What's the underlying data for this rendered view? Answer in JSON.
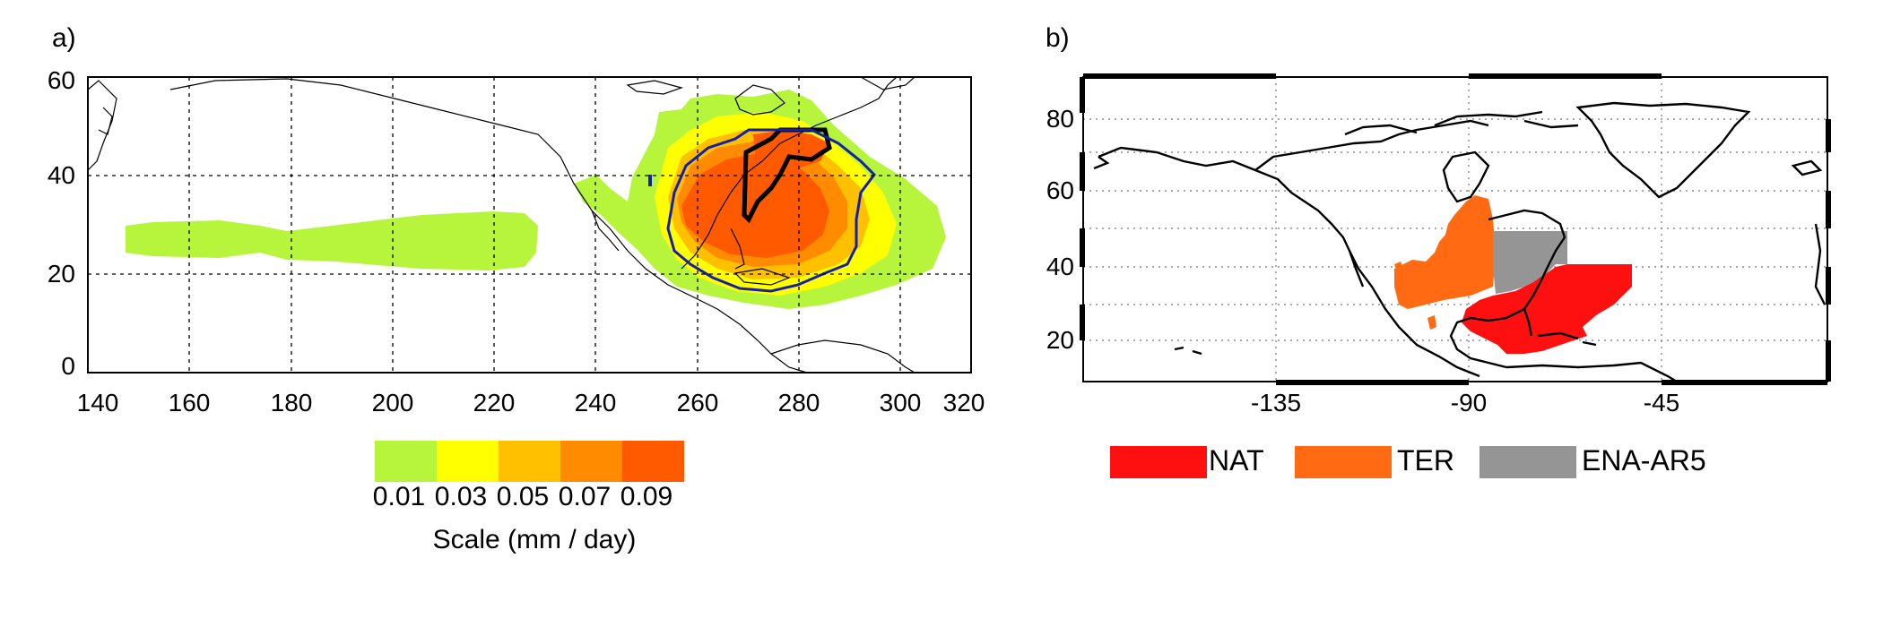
{
  "panel_a": {
    "label": "a)",
    "y_ticks": [
      "60",
      "40",
      "20",
      "0"
    ],
    "x_ticks": [
      "140",
      "160",
      "180",
      "200",
      "220",
      "240",
      "260",
      "280",
      "300",
      "320"
    ],
    "colorbar": {
      "colors": [
        "#b6f53b",
        "#ffff00",
        "#ffc000",
        "#ff8c00",
        "#ff5a00"
      ],
      "labels": [
        "0.01",
        "0.03",
        "0.05",
        "0.07",
        "0.09"
      ],
      "title": "Scale (mm / day)"
    }
  },
  "panel_b": {
    "label": "b)",
    "y_ticks": [
      "80",
      "60",
      "40",
      "20"
    ],
    "x_ticks": [
      "-135",
      "-90",
      "-45"
    ],
    "legend": [
      {
        "label": "NAT",
        "color": "#ff1010"
      },
      {
        "label": "TER",
        "color": "#ff6a12"
      },
      {
        "label": "ENA-AR5",
        "color": "#959595"
      }
    ]
  }
}
